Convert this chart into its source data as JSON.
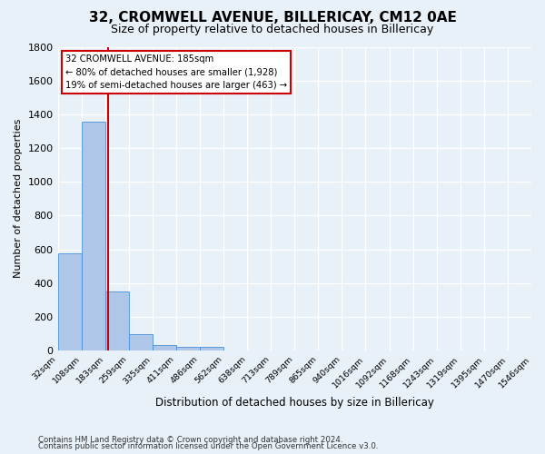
{
  "title": "32, CROMWELL AVENUE, BILLERICAY, CM12 0AE",
  "subtitle": "Size of property relative to detached houses in Billericay",
  "xlabel": "Distribution of detached houses by size in Billericay",
  "ylabel": "Number of detached properties",
  "footnote1": "Contains HM Land Registry data © Crown copyright and database right 2024.",
  "footnote2": "Contains public sector information licensed under the Open Government Licence v3.0.",
  "bin_labels": [
    "32sqm",
    "108sqm",
    "183sqm",
    "259sqm",
    "335sqm",
    "411sqm",
    "486sqm",
    "562sqm",
    "638sqm",
    "713sqm",
    "789sqm",
    "865sqm",
    "940sqm",
    "1016sqm",
    "1092sqm",
    "1168sqm",
    "1243sqm",
    "1319sqm",
    "1395sqm",
    "1470sqm",
    "1546sqm"
  ],
  "bin_values": [
    575,
    1355,
    350,
    95,
    30,
    20,
    20,
    0,
    0,
    0,
    0,
    0,
    0,
    0,
    0,
    0,
    0,
    0,
    0,
    0
  ],
  "bar_color": "#aec6e8",
  "bar_edge_color": "#4a90d9",
  "ylim": [
    0,
    1800
  ],
  "yticks": [
    0,
    200,
    400,
    600,
    800,
    1000,
    1200,
    1400,
    1600,
    1800
  ],
  "vline_x_index": 2.12,
  "annotation_title": "32 CROMWELL AVENUE: 185sqm",
  "annotation_line1": "← 80% of detached houses are smaller (1,928)",
  "annotation_line2": "19% of semi-detached houses are larger (463) →",
  "annotation_box_color": "#ffffff",
  "annotation_border_color": "#cc0000",
  "vline_color": "#cc0000",
  "bg_color": "#e8f0f8",
  "grid_color": "#ffffff"
}
